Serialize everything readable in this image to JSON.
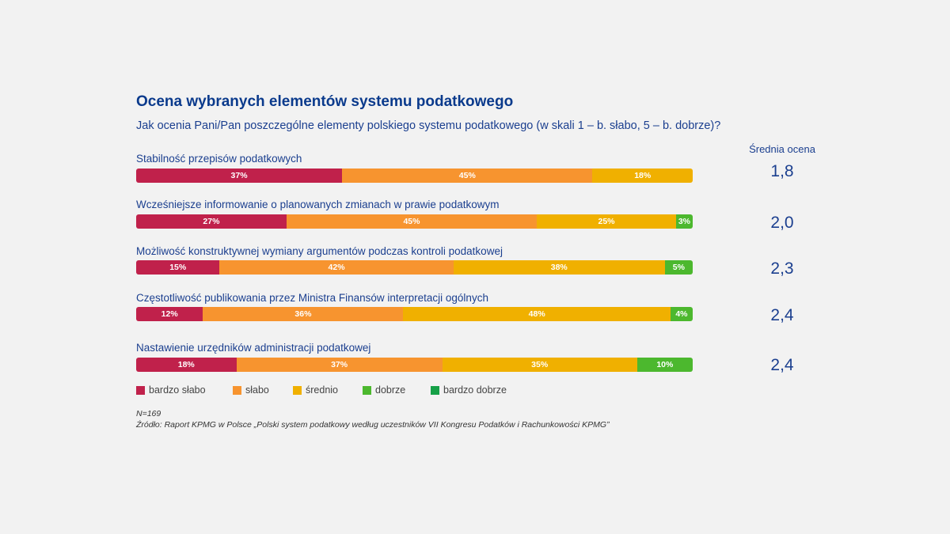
{
  "chart_data": {
    "type": "bar",
    "orientation": "horizontal-stacked-100",
    "title": "Ocena wybranych elementów systemu podatkowego",
    "subtitle": "Jak ocenia Pani/Pan poszczególne elementy polskiego systemu podatkowego (w skali 1 – b. słabo, 5 – b. dobrze)?",
    "average_header": "Średnia ocena",
    "series": [
      {
        "name": "bardzo słabo",
        "color": "#c0214b"
      },
      {
        "name": "słabo",
        "color": "#f7942f"
      },
      {
        "name": "średnio",
        "color": "#f0b000"
      },
      {
        "name": "dobrze",
        "color": "#4cb82e"
      },
      {
        "name": "bardzo dobrze",
        "color": "#16a047"
      }
    ],
    "rows": [
      {
        "label": "Stabilność przepisów podatkowych",
        "values": [
          37,
          45,
          18,
          0,
          0
        ],
        "value_labels": [
          "37%",
          "45%",
          "18%",
          "",
          ""
        ],
        "average": "1,8"
      },
      {
        "label": "Wcześniejsze informowanie o planowanych zmianach w prawie podatkowym",
        "values": [
          27,
          45,
          25,
          3,
          0
        ],
        "value_labels": [
          "27%",
          "45%",
          "25%",
          "3%",
          ""
        ],
        "average": "2,0"
      },
      {
        "label": "Możliwość konstruktywnej wymiany argumentów podczas kontroli podatkowej",
        "values": [
          15,
          42,
          38,
          5,
          0
        ],
        "value_labels": [
          "15%",
          "42%",
          "38%",
          "5%",
          ""
        ],
        "average": "2,3"
      },
      {
        "label": "Częstotliwość publikowania przez Ministra Finansów interpretacji ogólnych",
        "values": [
          12,
          36,
          48,
          4,
          0
        ],
        "value_labels": [
          "12%",
          "36%",
          "48%",
          "4%",
          ""
        ],
        "average": "2,4"
      },
      {
        "label": "Nastawienie urzędników administracji podatkowej",
        "values": [
          18,
          37,
          35,
          10,
          0
        ],
        "value_labels": [
          "18%",
          "37%",
          "35%",
          "10%",
          ""
        ],
        "average": "2,4"
      }
    ],
    "legend_placement": "bottom-left",
    "n_note": "N=169",
    "source_note": "Źródło: Raport KPMG w Polsce „Polski system podatkowy według uczestników VII Kongresu Podatków i Rachunkowości KPMG”"
  }
}
